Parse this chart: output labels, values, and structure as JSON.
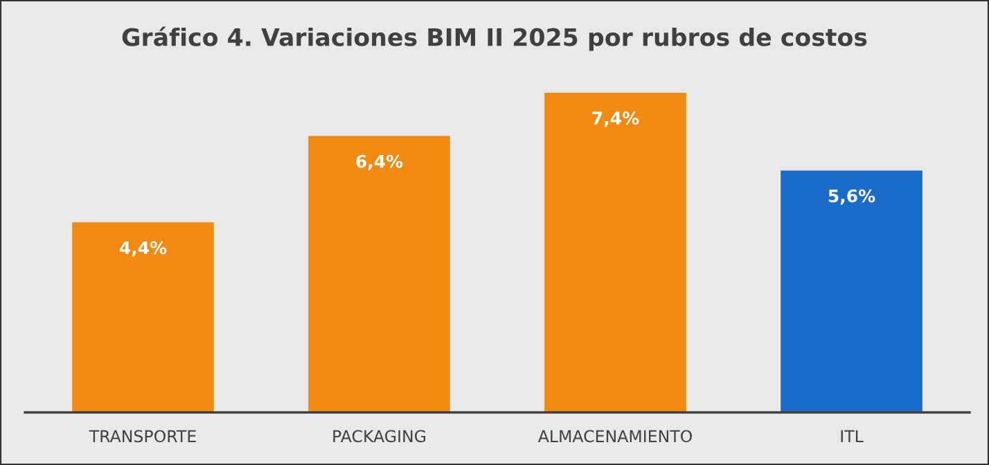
{
  "chart_data": {
    "type": "bar",
    "title": "Gráfico 4. Variaciones BIM II 2025 por rubros de costos",
    "categories": [
      "TRANSPORTE",
      "PACKAGING",
      "ALMACENAMIENTO",
      "ITL"
    ],
    "values": [
      4.4,
      6.4,
      7.4,
      5.6
    ],
    "value_labels": [
      "4,4%",
      "6,4%",
      "7,4%",
      "5,6%"
    ],
    "colors": [
      "#f28a12",
      "#f28a12",
      "#f28a12",
      "#1a6cc8"
    ],
    "grid": false,
    "legend": false
  }
}
